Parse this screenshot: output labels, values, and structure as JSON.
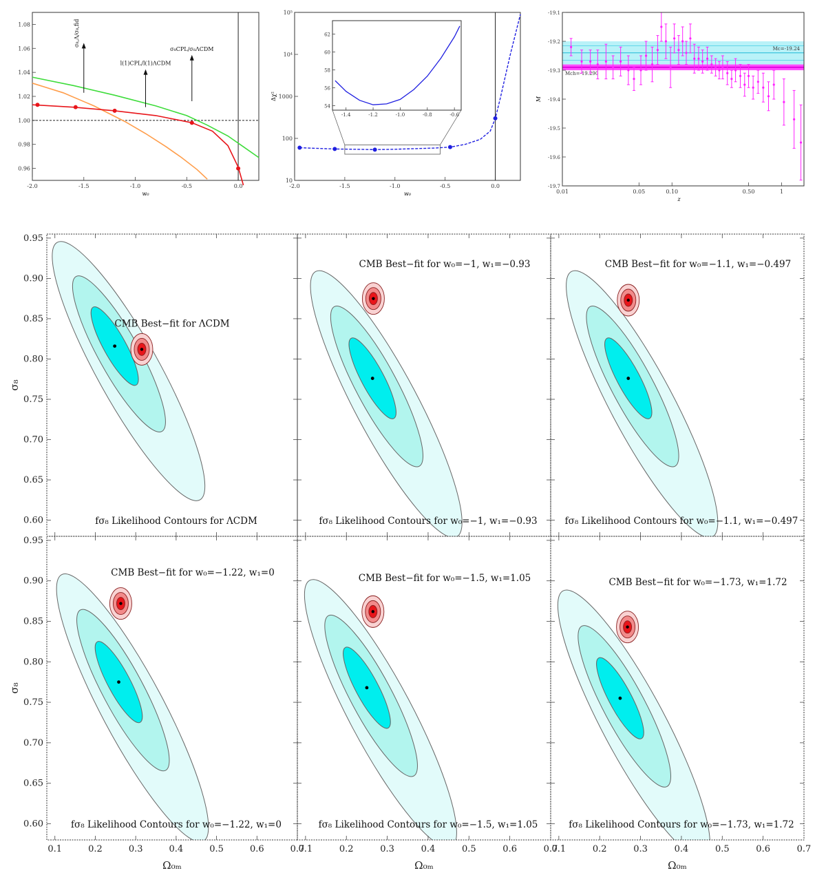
{
  "colors": {
    "red": "#e8151a",
    "green": "#3ddc3a",
    "orange": "#ff9d4a",
    "blue": "#1f1fe0",
    "magenta": "#ff22ff",
    "cyan_band": "#7fe8f2",
    "contour_1sigma": "#00eeee",
    "contour_2sigma": "#b2f5ee",
    "contour_3sigma": "#e2fbfa",
    "cmb_inner": "#e8151a",
    "cmb_mid": "#f28a8a",
    "cmb_outer": "#f9d2d2"
  },
  "chart_data": [
    {
      "id": "top-left",
      "type": "line",
      "xlabel": "w₀",
      "ylabel": "",
      "xlim": [
        -2.0,
        0.2
      ],
      "ylim": [
        0.95,
        1.09
      ],
      "xticks": [
        -2.0,
        -1.5,
        -1.0,
        -0.5,
        0.0
      ],
      "xtick_labels": [
        "-2.0",
        "-1.5",
        "-1.0",
        "-0.5",
        "0.0"
      ],
      "yticks": [
        0.96,
        0.98,
        1.0,
        1.02,
        1.04,
        1.06,
        1.08
      ],
      "ytick_labels": [
        "0.96",
        "0.98",
        "1.00",
        "1.02",
        "1.04",
        "1.06",
        "1.08"
      ],
      "hline": 1.0,
      "vline": 0.0,
      "series": [
        {
          "color": "green",
          "x": [
            -2.0,
            -1.6,
            -1.2,
            -0.8,
            -0.5,
            -0.3,
            -0.1,
            0.05,
            0.2
          ],
          "y": [
            1.036,
            1.029,
            1.021,
            1.012,
            1.004,
            0.996,
            0.987,
            0.978,
            0.969
          ]
        },
        {
          "color": "orange",
          "x": [
            -2.0,
            -1.7,
            -1.4,
            -1.1,
            -0.9,
            -0.7,
            -0.55,
            -0.4,
            -0.3
          ],
          "y": [
            1.031,
            1.023,
            1.012,
            0.999,
            0.989,
            0.978,
            0.969,
            0.959,
            0.951
          ]
        },
        {
          "color": "red",
          "x": [
            -2.0,
            -1.6,
            -1.2,
            -0.8,
            -0.45,
            -0.25,
            -0.1,
            0.0,
            0.05
          ],
          "y": [
            1.013,
            1.011,
            1.008,
            1.004,
            0.998,
            0.991,
            0.979,
            0.961,
            0.946
          ]
        }
      ],
      "markers": {
        "color": "red",
        "x": [
          -1.95,
          -1.58,
          -1.2,
          -0.45,
          0.0
        ],
        "y": [
          1.013,
          1.011,
          1.008,
          0.998,
          0.96
        ]
      },
      "annotations": [
        {
          "text": "σ₈,Λ/σ₈,fid",
          "x": -1.5,
          "y": 1.068,
          "arrow_to": 1.023
        },
        {
          "text": "l(1)CPL/l(1)ΛCDM",
          "x": -0.9,
          "y": 1.046,
          "arrow_to": 1.011
        },
        {
          "text": "σ₈CPL/σ₈ΛCDM",
          "x": -0.45,
          "y": 1.058,
          "arrow_to": 1.016
        }
      ]
    },
    {
      "id": "top-middle",
      "type": "line",
      "xlabel": "w₀",
      "ylabel": "Δχ²",
      "ylog": true,
      "xlim": [
        -2.0,
        0.25
      ],
      "ylim": [
        10,
        100000
      ],
      "xticks": [
        -2.0,
        -1.5,
        -1.0,
        -0.5,
        0.0
      ],
      "xtick_labels": [
        "-2.0",
        "-1.5",
        "-1.0",
        "-0.5",
        "0.0"
      ],
      "yticks": [
        10,
        100,
        1000,
        10000,
        100000
      ],
      "ytick_labels": [
        "10",
        "100",
        "1000",
        "10⁴",
        "10⁵"
      ],
      "vline": 0.0,
      "series": [
        {
          "color": "blue",
          "x": [
            -1.95,
            -1.8,
            -1.6,
            -1.4,
            -1.2,
            -1.0,
            -0.8,
            -0.6,
            -0.45,
            -0.3,
            -0.15,
            -0.05,
            0.0,
            0.05,
            0.1,
            0.15,
            0.2,
            0.25
          ],
          "y": [
            60,
            58,
            56,
            55,
            54,
            55,
            57,
            59,
            62,
            72,
            95,
            150,
            300,
            900,
            3000,
            10000,
            30000,
            90000
          ]
        }
      ],
      "markers": {
        "color": "blue",
        "x": [
          -1.95,
          -1.6,
          -1.2,
          -0.45,
          0.0
        ],
        "y": [
          60,
          56,
          54,
          62,
          300
        ]
      },
      "inset": {
        "xlim": [
          -1.5,
          -0.55
        ],
        "ylim": [
          53.5,
          63.5
        ],
        "xticks": [
          -1.4,
          -1.2,
          -1.0,
          -0.8,
          -0.6
        ],
        "xtick_labels": [
          "-1.4",
          "-1.2",
          "-1.0",
          "-0.8",
          "-0.6"
        ],
        "yticks": [
          54,
          56,
          58,
          60,
          62
        ],
        "ytick_labels": [
          "54",
          "56",
          "58",
          "60",
          "62"
        ],
        "x": [
          -1.48,
          -1.4,
          -1.3,
          -1.2,
          -1.1,
          -1.0,
          -0.9,
          -0.8,
          -0.7,
          -0.6,
          -0.56
        ],
        "y": [
          56.8,
          55.6,
          54.6,
          54.1,
          54.2,
          54.7,
          55.8,
          57.3,
          59.3,
          61.7,
          62.9
        ]
      }
    },
    {
      "id": "top-right",
      "type": "scatter",
      "xlabel": "z",
      "ylabel": "M",
      "xlog": true,
      "xlim": [
        0.01,
        1.6
      ],
      "ylim": [
        -19.7,
        -19.1
      ],
      "xticks": [
        0.01,
        0.05,
        0.1,
        0.5,
        1
      ],
      "xtick_labels": [
        "0.01",
        "0.05",
        "0.10",
        "0.50",
        "1"
      ],
      "yticks": [
        -19.1,
        -19.2,
        -19.3,
        -19.4,
        -19.5,
        -19.6,
        -19.7
      ],
      "ytick_labels": [
        "-19.1",
        "-19.2",
        "-19.3",
        "-19.4",
        "-19.5",
        "-19.6",
        "-19.7"
      ],
      "bands": [
        {
          "label": "Mc=-19.24",
          "value": -19.24,
          "halfwidth": 0.04,
          "color": "cyan_band"
        },
        {
          "label": "Mch=-19.290",
          "value": -19.29,
          "halfwidth": 0.01,
          "color": "magenta"
        }
      ],
      "points": [
        [
          0.012,
          -19.22,
          0.03
        ],
        [
          0.015,
          -19.27,
          0.04
        ],
        [
          0.018,
          -19.27,
          0.04
        ],
        [
          0.021,
          -19.28,
          0.05
        ],
        [
          0.025,
          -19.27,
          0.06
        ],
        [
          0.029,
          -19.29,
          0.04
        ],
        [
          0.034,
          -19.27,
          0.05
        ],
        [
          0.04,
          -19.3,
          0.05
        ],
        [
          0.045,
          -19.33,
          0.04
        ],
        [
          0.052,
          -19.3,
          0.05
        ],
        [
          0.058,
          -19.25,
          0.05
        ],
        [
          0.066,
          -19.28,
          0.06
        ],
        [
          0.074,
          -19.23,
          0.05
        ],
        [
          0.08,
          -19.15,
          0.05
        ],
        [
          0.088,
          -19.2,
          0.06
        ],
        [
          0.097,
          -19.29,
          0.07
        ],
        [
          0.105,
          -19.19,
          0.05
        ],
        [
          0.115,
          -19.23,
          0.05
        ],
        [
          0.125,
          -19.2,
          0.05
        ],
        [
          0.135,
          -19.24,
          0.04
        ],
        [
          0.147,
          -19.19,
          0.05
        ],
        [
          0.16,
          -19.26,
          0.05
        ],
        [
          0.175,
          -19.26,
          0.04
        ],
        [
          0.19,
          -19.27,
          0.04
        ],
        [
          0.21,
          -19.26,
          0.04
        ],
        [
          0.23,
          -19.28,
          0.03
        ],
        [
          0.25,
          -19.29,
          0.03
        ],
        [
          0.27,
          -19.3,
          0.03
        ],
        [
          0.29,
          -19.29,
          0.04
        ],
        [
          0.32,
          -19.31,
          0.04
        ],
        [
          0.35,
          -19.33,
          0.03
        ],
        [
          0.38,
          -19.3,
          0.04
        ],
        [
          0.42,
          -19.32,
          0.04
        ],
        [
          0.46,
          -19.35,
          0.04
        ],
        [
          0.5,
          -19.32,
          0.04
        ],
        [
          0.55,
          -19.36,
          0.04
        ],
        [
          0.61,
          -19.34,
          0.04
        ],
        [
          0.68,
          -19.36,
          0.05
        ],
        [
          0.76,
          -19.39,
          0.05
        ],
        [
          0.85,
          -19.35,
          0.05
        ],
        [
          1.05,
          -19.41,
          0.08
        ],
        [
          1.3,
          -19.47,
          0.1
        ],
        [
          1.5,
          -19.55,
          0.13
        ]
      ]
    },
    {
      "id": "contour-1",
      "type": "contour",
      "title": "CMB Best−fit for ΛCDM",
      "subtitle": "fσ₈ Likelihood Contours for ΛCDM",
      "fs8_best": [
        0.248,
        0.816
      ],
      "cmb_best": [
        0.315,
        0.812
      ],
      "ellipse_angle": 61,
      "sigma_major": 0.048,
      "sigma_minor": 0.024
    },
    {
      "id": "contour-2",
      "type": "contour",
      "title": "CMB Best−fit for w₀=−1, w₁=−0.93",
      "subtitle": "fσ₈ Likelihood Contours for w₀=−1, w₁=−0.93",
      "fs8_best": [
        0.264,
        0.776
      ],
      "cmb_best": [
        0.266,
        0.875
      ],
      "ellipse_angle": 62,
      "sigma_major": 0.049,
      "sigma_minor": 0.024
    },
    {
      "id": "contour-3",
      "type": "contour",
      "title": "CMB Best−fit for w₀=−1.1, w₁=−0.497",
      "subtitle": "fσ₈ Likelihood Contours for w₀=−1.1, w₁=−0.497",
      "fs8_best": [
        0.27,
        0.776
      ],
      "cmb_best": [
        0.27,
        0.873
      ],
      "ellipse_angle": 62,
      "sigma_major": 0.049,
      "sigma_minor": 0.024
    },
    {
      "id": "contour-4",
      "type": "contour",
      "title": "CMB Best−fit for w₀=−1.22, w₁=0",
      "subtitle": "fσ₈ Likelihood Contours for w₀=−1.22, w₁=0",
      "fs8_best": [
        0.258,
        0.775
      ],
      "cmb_best": [
        0.263,
        0.872
      ],
      "ellipse_angle": 62,
      "sigma_major": 0.049,
      "sigma_minor": 0.024
    },
    {
      "id": "contour-5",
      "type": "contour",
      "title": "CMB Best−fit for w₀=−1.5, w₁=1.05",
      "subtitle": "fσ₈ Likelihood Contours for w₀=−1.5, w₁=1.05",
      "fs8_best": [
        0.25,
        0.768
      ],
      "cmb_best": [
        0.265,
        0.862
      ],
      "ellipse_angle": 62,
      "sigma_major": 0.049,
      "sigma_minor": 0.024
    },
    {
      "id": "contour-6",
      "type": "contour",
      "title": "CMB Best−fit for w₀=−1.73, w₁=1.72",
      "subtitle": "fσ₈ Likelihood Contours for w₀=−1.73, w₁=1.72",
      "fs8_best": [
        0.25,
        0.755
      ],
      "cmb_best": [
        0.268,
        0.843
      ],
      "ellipse_angle": 62,
      "sigma_major": 0.049,
      "sigma_minor": 0.024
    }
  ],
  "contour_axes": {
    "xlabel": "Ω₀ₘ",
    "ylabel": "σ₈",
    "xlim": [
      0.08,
      0.7
    ],
    "ylim": [
      0.58,
      0.955
    ],
    "xticks": [
      0.1,
      0.2,
      0.3,
      0.4,
      0.5,
      0.6,
      0.7
    ],
    "xtick_labels": [
      "0.1",
      "0.2",
      "0.3",
      "0.4",
      "0.5",
      "0.6",
      "0.7"
    ],
    "yticks": [
      0.6,
      0.65,
      0.7,
      0.75,
      0.8,
      0.85,
      0.9,
      0.95
    ],
    "ytick_labels": [
      "0.60",
      "0.65",
      "0.70",
      "0.75",
      "0.80",
      "0.85",
      "0.90",
      "0.95"
    ]
  }
}
